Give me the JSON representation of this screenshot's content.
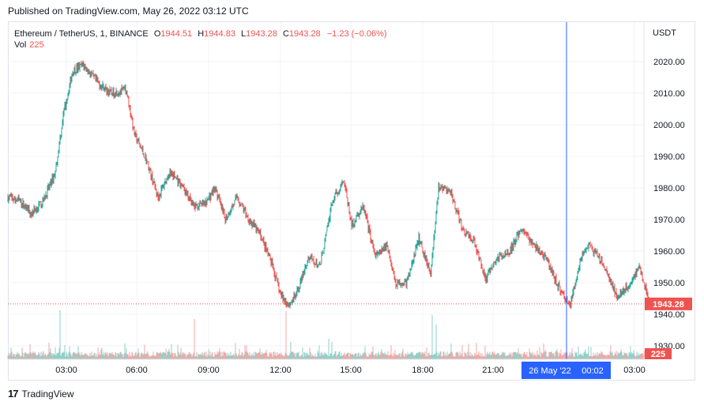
{
  "published": "Published on TradingView.com, May 26, 2022 03:12 UTC",
  "legend": {
    "symbol": "Ethereum / TetherUS, 1, BINANCE",
    "open_label": "O",
    "open": "1944.51",
    "high_label": "H",
    "high": "1944.83",
    "low_label": "L",
    "low": "1943.28",
    "close_label": "C",
    "close": "1943.28",
    "change": "−1.23 (−0.06%)",
    "vol_label": "Vol",
    "vol": "225"
  },
  "currency": "USDT",
  "branding": "TradingView",
  "colors": {
    "up": "#26a69a",
    "down": "#ef5350",
    "crosshair": "#2962ff",
    "grid": "#f0f3fa",
    "axis_text": "#131722"
  },
  "chart_data": {
    "type": "candlestick",
    "ylim": [
      1930,
      2022
    ],
    "yticks": [
      "2020.00",
      "2010.00",
      "2000.00",
      "1990.00",
      "1980.00",
      "1970.00",
      "1960.00",
      "1950.00",
      "1940.00",
      "1930.00"
    ],
    "xticks": [
      "03:00",
      "06:00",
      "09:00",
      "12:00",
      "15:00",
      "18:00",
      "21:00",
      "03:00"
    ],
    "crosshair_label": {
      "date": "26 May '22",
      "time": "00:02"
    },
    "last_price": "1943.28",
    "last_volume": "225",
    "price_path": [
      [
        0,
        1977
      ],
      [
        15,
        1976
      ],
      [
        30,
        1972
      ],
      [
        45,
        1976
      ],
      [
        60,
        1985
      ],
      [
        70,
        2003
      ],
      [
        82,
        2017
      ],
      [
        95,
        2019
      ],
      [
        105,
        2016
      ],
      [
        115,
        2013
      ],
      [
        130,
        2010
      ],
      [
        150,
        2011
      ],
      [
        160,
        1997
      ],
      [
        175,
        1989
      ],
      [
        190,
        1977
      ],
      [
        205,
        1985
      ],
      [
        220,
        1981
      ],
      [
        235,
        1974
      ],
      [
        250,
        1975
      ],
      [
        262,
        1980
      ],
      [
        275,
        1970
      ],
      [
        290,
        1977
      ],
      [
        305,
        1970
      ],
      [
        320,
        1965
      ],
      [
        335,
        1955
      ],
      [
        345,
        1946
      ],
      [
        355,
        1943
      ],
      [
        365,
        1946
      ],
      [
        380,
        1958
      ],
      [
        395,
        1955
      ],
      [
        410,
        1975
      ],
      [
        425,
        1983
      ],
      [
        435,
        1968
      ],
      [
        450,
        1974
      ],
      [
        465,
        1958
      ],
      [
        480,
        1962
      ],
      [
        490,
        1950
      ],
      [
        505,
        1950
      ],
      [
        520,
        1964
      ],
      [
        535,
        1953
      ],
      [
        545,
        1980
      ],
      [
        560,
        1979
      ],
      [
        575,
        1967
      ],
      [
        590,
        1963
      ],
      [
        605,
        1951
      ],
      [
        620,
        1958
      ],
      [
        635,
        1960
      ],
      [
        650,
        1967
      ],
      [
        665,
        1962
      ],
      [
        680,
        1958
      ],
      [
        700,
        1947
      ],
      [
        712,
        1943
      ],
      [
        725,
        1958
      ],
      [
        735,
        1962
      ],
      [
        750,
        1957
      ],
      [
        760,
        1952
      ],
      [
        772,
        1945
      ],
      [
        785,
        1949
      ],
      [
        800,
        1955
      ],
      [
        812,
        1943.28
      ]
    ],
    "volume_spikes": [
      [
        52,
        21
      ],
      [
        60,
        15
      ],
      [
        66,
        62
      ],
      [
        72,
        18
      ],
      [
        118,
        12
      ],
      [
        150,
        14
      ],
      [
        236,
        51
      ],
      [
        268,
        14
      ],
      [
        306,
        9
      ],
      [
        341,
        9
      ],
      [
        352,
        61
      ],
      [
        358,
        22
      ],
      [
        373,
        15
      ],
      [
        406,
        26
      ],
      [
        410,
        22
      ],
      [
        485,
        18
      ],
      [
        537,
        56
      ],
      [
        542,
        44
      ],
      [
        593,
        21
      ],
      [
        604,
        17
      ],
      [
        691,
        8
      ],
      [
        714,
        14
      ],
      [
        722,
        16
      ]
    ]
  }
}
